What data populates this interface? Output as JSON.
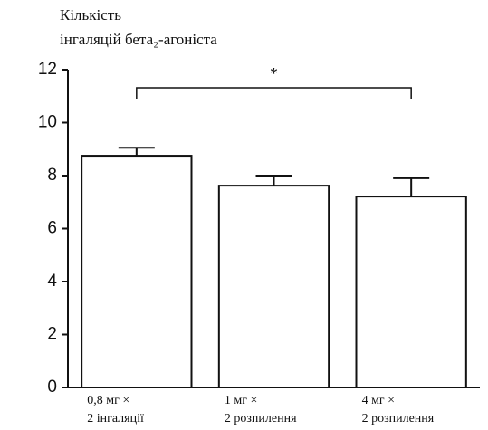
{
  "chart_data": {
    "type": "bar",
    "title": [
      "Кількість",
      "інгаляцій бета₂-агоніста"
    ],
    "categories": [
      [
        "0,8 мг ×",
        "2 інгаляції"
      ],
      [
        "1 мг ×",
        "2 розпилення"
      ],
      [
        "4 мг ×",
        "2 розпилення"
      ]
    ],
    "values": [
      8.75,
      7.62,
      7.21
    ],
    "errors": [
      0.3,
      0.38,
      0.69
    ],
    "color": "#ffffff",
    "ylim": [
      0,
      12
    ],
    "yticks": [
      0,
      2,
      4,
      6,
      8,
      10,
      12
    ],
    "annotations": [
      "*"
    ]
  }
}
